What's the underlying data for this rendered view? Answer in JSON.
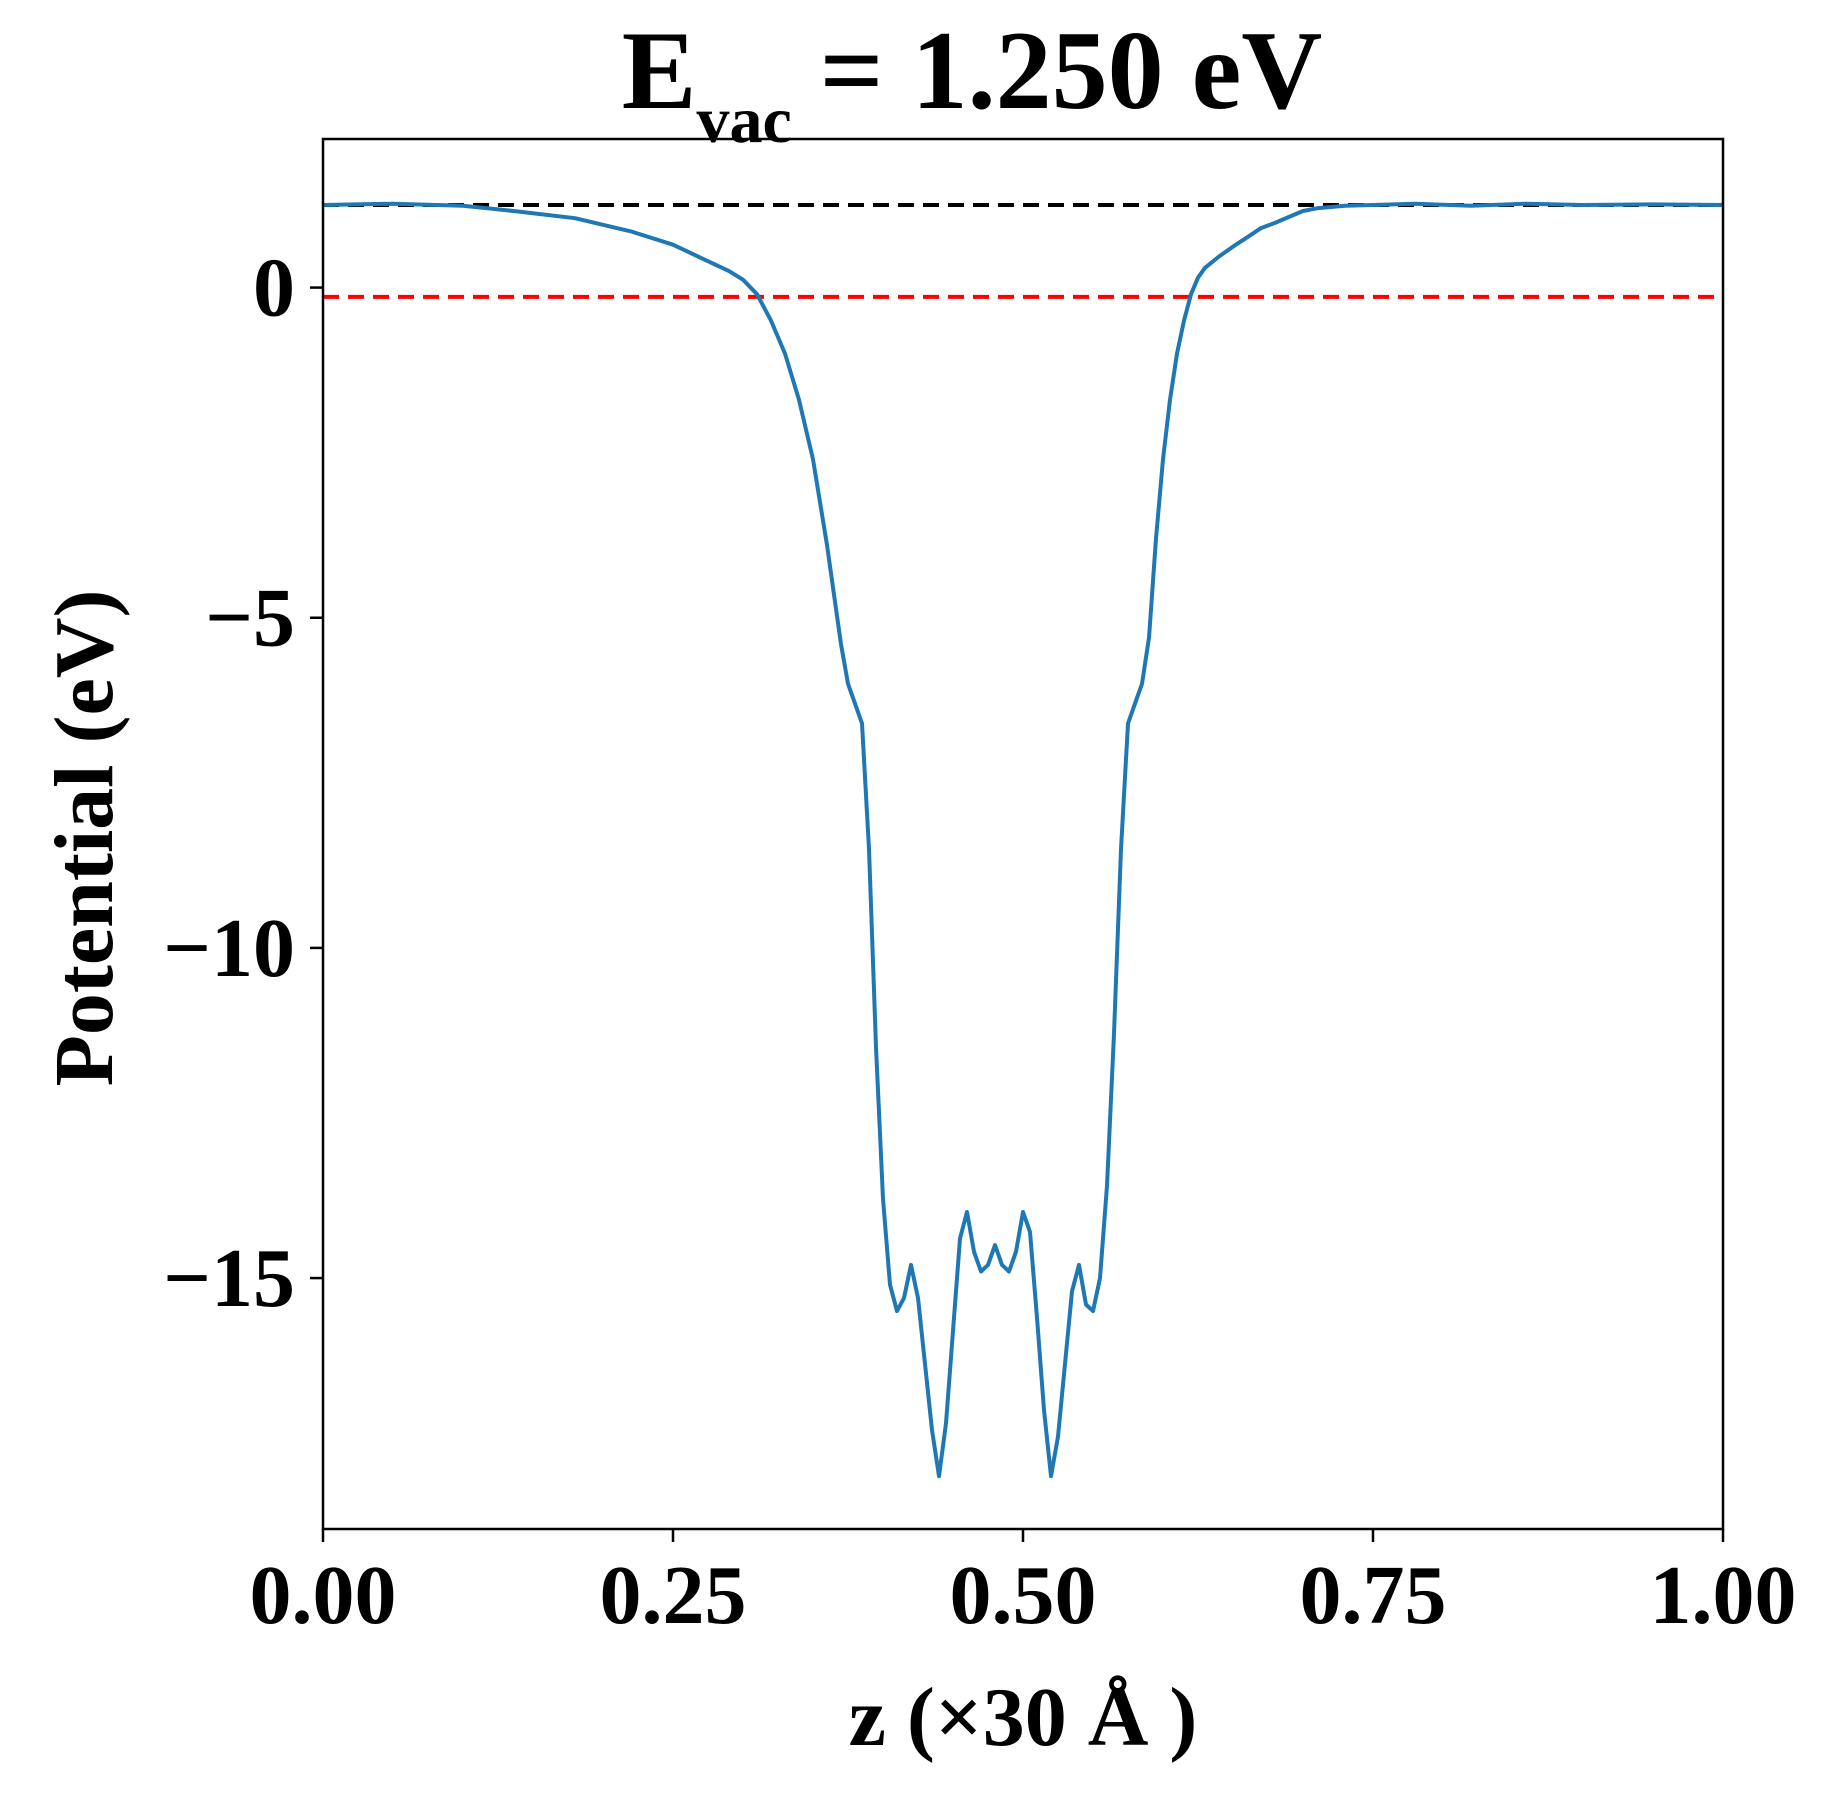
{
  "chart_data": {
    "type": "line",
    "title": {
      "main": "E",
      "subscript": "vac",
      "rest": " = 1.250 eV"
    },
    "xlabel": "z (×30 Å )",
    "ylabel": "Potential (eV)",
    "xlim": [
      0,
      1
    ],
    "ylim": [
      -18.8,
      2.25
    ],
    "x_ticks": [
      0,
      0.25,
      0.5,
      0.75,
      1
    ],
    "x_tick_labels": [
      "0.00",
      "0.25",
      "0.50",
      "0.75",
      "1.00"
    ],
    "y_ticks": [
      0,
      -5,
      -10,
      -15
    ],
    "y_tick_labels": [
      "0",
      "−5",
      "−10",
      "−15"
    ],
    "grid": false,
    "reference_lines": [
      {
        "y": 1.25,
        "color": "#000000",
        "style": "dashed"
      },
      {
        "y": -0.14,
        "color": "#ff0000",
        "style": "dashed"
      }
    ],
    "series": [
      {
        "color": "#1f77b4",
        "x": [
          0.0,
          0.05,
          0.1,
          0.14,
          0.18,
          0.22,
          0.25,
          0.27,
          0.29,
          0.3,
          0.31,
          0.32,
          0.33,
          0.34,
          0.35,
          0.36,
          0.37,
          0.375,
          0.38,
          0.385,
          0.39,
          0.395,
          0.4,
          0.405,
          0.41,
          0.415,
          0.42,
          0.425,
          0.43,
          0.435,
          0.44,
          0.445,
          0.45,
          0.455,
          0.46,
          0.465,
          0.47,
          0.475,
          0.48,
          0.485,
          0.49,
          0.495,
          0.5,
          0.505,
          0.51,
          0.515,
          0.52,
          0.525,
          0.53,
          0.535,
          0.54,
          0.545,
          0.55,
          0.555,
          0.56,
          0.565,
          0.57,
          0.575,
          0.58,
          0.585,
          0.59,
          0.595,
          0.6,
          0.605,
          0.61,
          0.615,
          0.62,
          0.625,
          0.63,
          0.64,
          0.65,
          0.66,
          0.67,
          0.68,
          0.69,
          0.7,
          0.71,
          0.73,
          0.75,
          0.78,
          0.82,
          0.86,
          0.9,
          0.95,
          1.0
        ],
        "y": [
          1.25,
          1.27,
          1.24,
          1.15,
          1.05,
          0.85,
          0.65,
          0.45,
          0.25,
          0.12,
          -0.1,
          -0.5,
          -1.0,
          -1.7,
          -2.6,
          -3.9,
          -5.4,
          -6.0,
          -6.3,
          -6.6,
          -8.5,
          -11.5,
          -13.8,
          -15.1,
          -15.5,
          -15.3,
          -14.8,
          -15.3,
          -16.3,
          -17.3,
          -18.0,
          -17.2,
          -15.8,
          -14.4,
          -14.0,
          -14.6,
          -14.9,
          -14.8,
          -14.5,
          -14.8,
          -14.9,
          -14.6,
          -14.0,
          -14.3,
          -15.6,
          -17.0,
          -18.0,
          -17.4,
          -16.3,
          -15.2,
          -14.8,
          -15.4,
          -15.5,
          -15.0,
          -13.6,
          -11.3,
          -8.5,
          -6.6,
          -6.3,
          -6.0,
          -5.3,
          -3.8,
          -2.6,
          -1.7,
          -1.0,
          -0.5,
          -0.1,
          0.15,
          0.3,
          0.47,
          0.62,
          0.76,
          0.9,
          0.98,
          1.07,
          1.16,
          1.2,
          1.24,
          1.25,
          1.27,
          1.24,
          1.27,
          1.25,
          1.26,
          1.25
        ]
      }
    ]
  }
}
